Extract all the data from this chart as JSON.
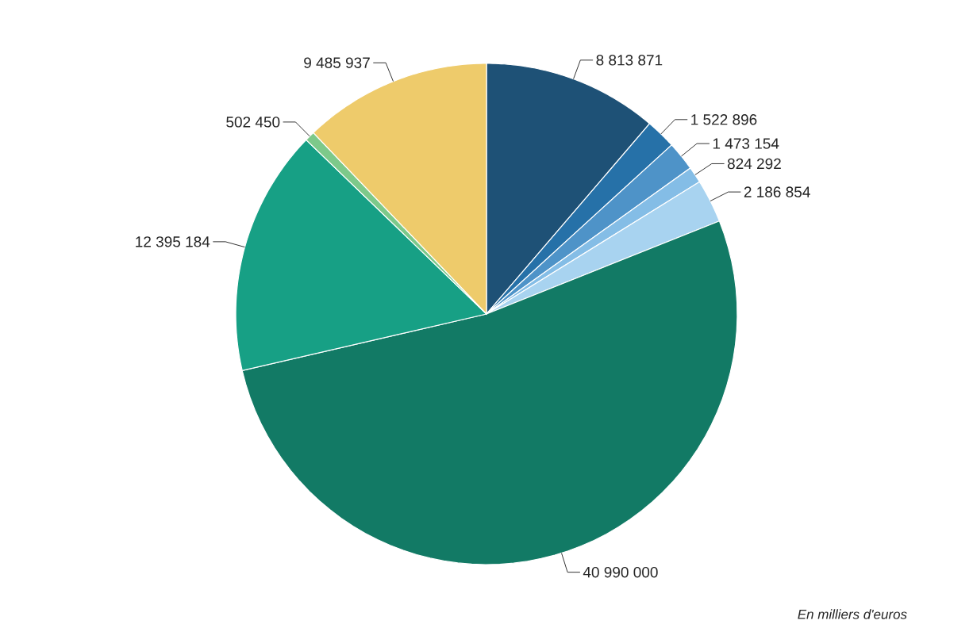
{
  "chart_data": {
    "type": "pie",
    "categories": [
      null,
      null,
      null,
      null,
      null,
      null,
      null,
      null,
      null
    ],
    "values": [
      8813871,
      1522896,
      1473154,
      824292,
      2186854,
      40990000,
      12395184,
      502450,
      9485937
    ],
    "value_labels": [
      "8 813 871",
      "1 522 896",
      "1 473 154",
      "824 292",
      "2 186 854",
      "40 990 000",
      "12 395 184",
      "502 450",
      "9 485 937"
    ],
    "colors": [
      "#1e5176",
      "#2671a8",
      "#4e93c8",
      "#84bde6",
      "#a8d3f0",
      "#127a65",
      "#17a085",
      "#7dc98a",
      "#eecb6b"
    ],
    "annotations": [
      "En milliers d'euros"
    ]
  }
}
